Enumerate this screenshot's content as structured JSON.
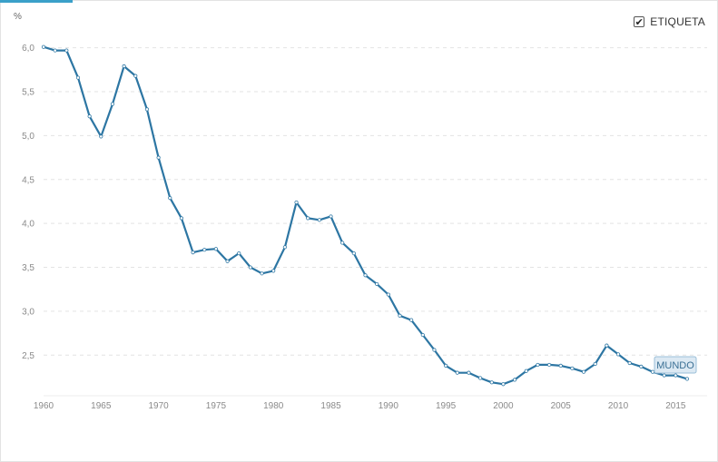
{
  "legend": {
    "label": "ETIQUETA",
    "checked": true,
    "check_glyph": "✔"
  },
  "chart_data": {
    "type": "line",
    "unit_label": "%",
    "ylim": [
      2.1,
      6.1
    ],
    "yticks": [
      2.5,
      3.0,
      3.5,
      4.0,
      4.5,
      5.0,
      5.5,
      6.0
    ],
    "ytick_labels": [
      "2,5",
      "3,0",
      "3,5",
      "4,0",
      "4,5",
      "5,0",
      "5,5",
      "6,0"
    ],
    "xlim": [
      1960,
      2016
    ],
    "xticks": [
      1960,
      1965,
      1970,
      1975,
      1980,
      1985,
      1990,
      1995,
      2000,
      2005,
      2010,
      2015
    ],
    "xtick_labels": [
      "1960",
      "1965",
      "1970",
      "1975",
      "1980",
      "1985",
      "1990",
      "1995",
      "2000",
      "2005",
      "2010",
      "2015"
    ],
    "grid": true,
    "line_color": "#2d76a3",
    "x": [
      1960,
      1961,
      1962,
      1963,
      1964,
      1965,
      1966,
      1967,
      1968,
      1969,
      1970,
      1971,
      1972,
      1973,
      1974,
      1975,
      1976,
      1977,
      1978,
      1979,
      1980,
      1981,
      1982,
      1983,
      1984,
      1985,
      1986,
      1987,
      1988,
      1989,
      1990,
      1991,
      1992,
      1993,
      1994,
      1995,
      1996,
      1997,
      1998,
      1999,
      2000,
      2001,
      2002,
      2003,
      2004,
      2005,
      2006,
      2007,
      2008,
      2009,
      2010,
      2011,
      2012,
      2013,
      2014,
      2015,
      2016
    ],
    "series": [
      {
        "name": "MUNDO",
        "values": [
          6.01,
          5.97,
          5.97,
          5.66,
          5.22,
          4.99,
          5.36,
          5.79,
          5.68,
          5.3,
          4.75,
          4.29,
          4.06,
          3.67,
          3.7,
          3.71,
          3.57,
          3.66,
          3.5,
          3.43,
          3.46,
          3.73,
          4.24,
          4.06,
          4.04,
          4.08,
          3.78,
          3.66,
          3.41,
          3.31,
          3.19,
          2.95,
          2.9,
          2.73,
          2.56,
          2.38,
          2.3,
          2.3,
          2.24,
          2.19,
          2.17,
          2.22,
          2.32,
          2.39,
          2.39,
          2.38,
          2.35,
          2.31,
          2.4,
          2.61,
          2.51,
          2.41,
          2.37,
          2.31,
          2.27,
          2.27,
          2.23
        ]
      }
    ]
  }
}
